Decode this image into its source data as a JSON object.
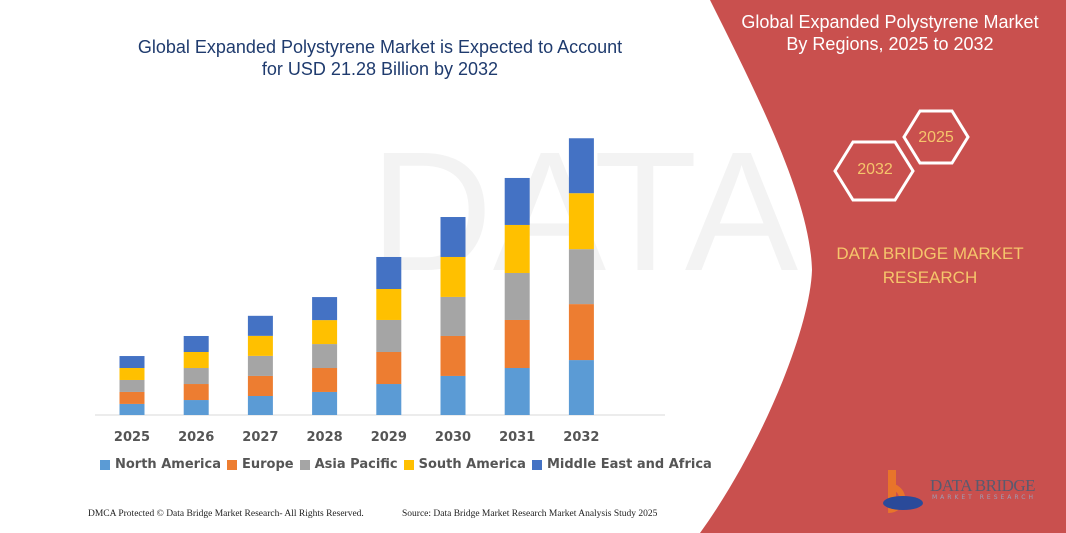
{
  "colors": {
    "panel": "#c9504e",
    "accent": "#f5c56b",
    "title": "#1f3b6e"
  },
  "right_panel": {
    "title_line1": "Global Expanded Polystyrene Market",
    "title_line2": "By Regions, 2025 to 2032",
    "hex_start": "2025",
    "hex_end": "2032",
    "brand_line1": "DATA BRIDGE MARKET",
    "brand_line2": "RESEARCH",
    "logo_text": "DATA BRIDGE",
    "logo_sub": "MARKET RESEARCH"
  },
  "footer": {
    "left": "DMCA Protected © Data Bridge Market Research- All Rights Reserved.",
    "right": "Source: Data Bridge Market Research Market Analysis Study 2025"
  },
  "chart_data": {
    "type": "bar",
    "stacked": true,
    "title_line1": "Global Expanded Polystyrene Market is Expected to Account",
    "title_line2": "for USD 21.28 Billion by 2032",
    "xlabel": "",
    "ylabel": "",
    "ylim": [
      0,
      21.28
    ],
    "grid": false,
    "legend": "bottom",
    "categories": [
      "2025",
      "2026",
      "2027",
      "2028",
      "2029",
      "2030",
      "2031",
      "2032"
    ],
    "series": [
      {
        "name": "North America",
        "color": "#5b9bd5",
        "values": [
          0.85,
          1.15,
          1.46,
          1.77,
          2.38,
          3.0,
          3.61,
          4.22
        ]
      },
      {
        "name": "Europe",
        "color": "#ed7d31",
        "values": [
          0.92,
          1.23,
          1.54,
          1.84,
          2.46,
          3.07,
          3.69,
          4.3
        ]
      },
      {
        "name": "Asia Pacific",
        "color": "#a5a5a5",
        "values": [
          0.92,
          1.23,
          1.54,
          1.84,
          2.46,
          3.0,
          3.61,
          4.22
        ]
      },
      {
        "name": "South America",
        "color": "#ffc000",
        "values": [
          0.92,
          1.23,
          1.54,
          1.84,
          2.38,
          3.07,
          3.69,
          4.3
        ]
      },
      {
        "name": "Middle East and Africa",
        "color": "#4472c4",
        "values": [
          0.92,
          1.23,
          1.54,
          1.77,
          2.46,
          3.07,
          3.61,
          4.22
        ]
      }
    ]
  }
}
